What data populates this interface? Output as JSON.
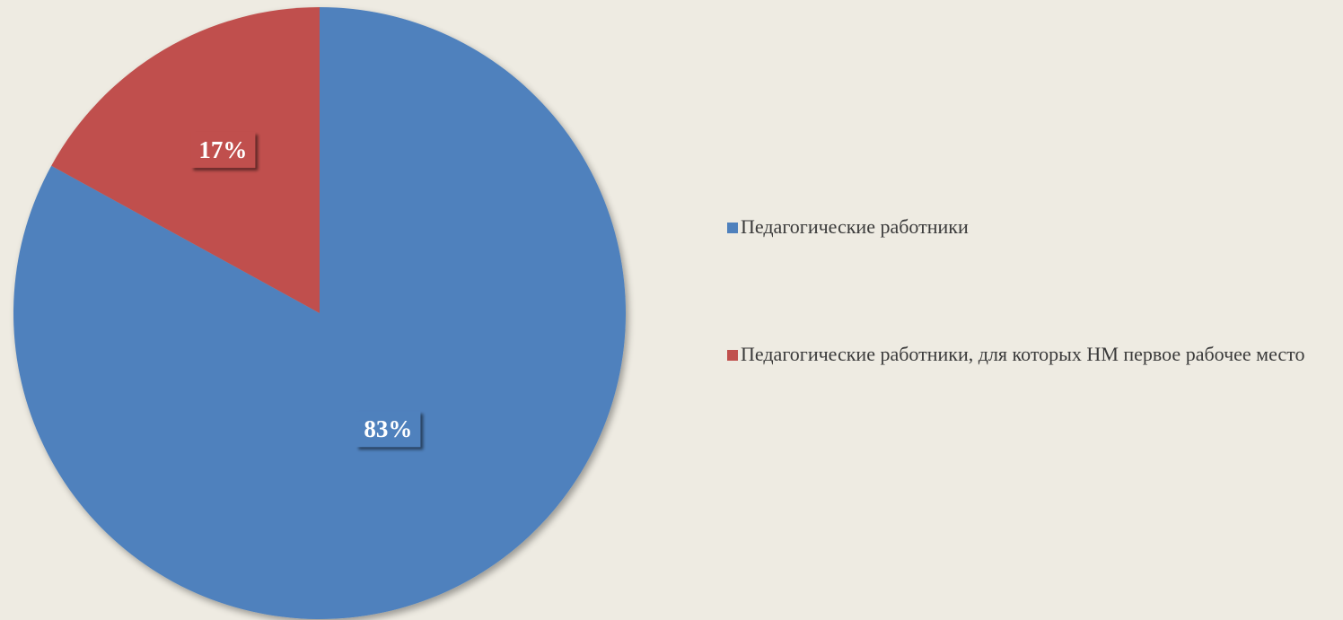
{
  "chart_data": {
    "type": "pie",
    "title": "",
    "categories": [
      "Педагогические работники",
      "Педагогические работники, для которых НМ первое рабочее место"
    ],
    "values": [
      83,
      17
    ],
    "data_labels": [
      "83%",
      "17%"
    ],
    "colors": [
      "#4f81bd",
      "#c0504d"
    ],
    "legend_position": "right",
    "start_angle_deg": 0,
    "direction": "clockwise"
  },
  "legend": {
    "items": [
      {
        "label": "Педагогические работники",
        "color": "#4f81bd"
      },
      {
        "label": "Педагогические работники, для которых НМ первое рабочее место",
        "color": "#c0504d"
      }
    ]
  },
  "background_color": "#eeebe2"
}
